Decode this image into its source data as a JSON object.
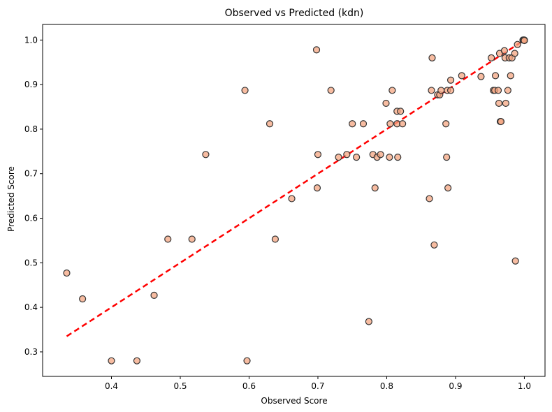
{
  "chart_data": {
    "type": "scatter",
    "title": "Observed vs Predicted (kdn)",
    "xlabel": "Observed Score",
    "ylabel": "Predicted Score",
    "xlim": [
      0.3,
      1.03
    ],
    "ylim": [
      0.245,
      1.035
    ],
    "xticks": [
      "0.4",
      "0.5",
      "0.6",
      "0.7",
      "0.8",
      "0.9",
      "1.0"
    ],
    "yticks": [
      "0.3",
      "0.4",
      "0.5",
      "0.6",
      "0.7",
      "0.8",
      "0.9",
      "1.0"
    ],
    "grid": false,
    "reference_line": {
      "from": [
        0.335,
        0.335
      ],
      "to": [
        1.0,
        1.0
      ],
      "color": "#ff0000",
      "style": "dashed"
    },
    "marker_fill": "#f4a582",
    "marker_edge": "#333333",
    "points": [
      {
        "x": 0.335,
        "y": 0.477
      },
      {
        "x": 0.358,
        "y": 0.419
      },
      {
        "x": 0.4,
        "y": 0.28
      },
      {
        "x": 0.437,
        "y": 0.28
      },
      {
        "x": 0.462,
        "y": 0.427
      },
      {
        "x": 0.482,
        "y": 0.553
      },
      {
        "x": 0.517,
        "y": 0.553
      },
      {
        "x": 0.537,
        "y": 0.743
      },
      {
        "x": 0.594,
        "y": 0.887
      },
      {
        "x": 0.597,
        "y": 0.28
      },
      {
        "x": 0.63,
        "y": 0.812
      },
      {
        "x": 0.638,
        "y": 0.553
      },
      {
        "x": 0.662,
        "y": 0.644
      },
      {
        "x": 0.698,
        "y": 0.978
      },
      {
        "x": 0.699,
        "y": 0.668
      },
      {
        "x": 0.7,
        "y": 0.743
      },
      {
        "x": 0.719,
        "y": 0.887
      },
      {
        "x": 0.73,
        "y": 0.737
      },
      {
        "x": 0.742,
        "y": 0.743
      },
      {
        "x": 0.75,
        "y": 0.812
      },
      {
        "x": 0.756,
        "y": 0.737
      },
      {
        "x": 0.766,
        "y": 0.812
      },
      {
        "x": 0.774,
        "y": 0.368
      },
      {
        "x": 0.78,
        "y": 0.743
      },
      {
        "x": 0.783,
        "y": 0.668
      },
      {
        "x": 0.786,
        "y": 0.737
      },
      {
        "x": 0.791,
        "y": 0.743
      },
      {
        "x": 0.799,
        "y": 0.858
      },
      {
        "x": 0.804,
        "y": 0.737
      },
      {
        "x": 0.805,
        "y": 0.812
      },
      {
        "x": 0.808,
        "y": 0.887
      },
      {
        "x": 0.815,
        "y": 0.812
      },
      {
        "x": 0.815,
        "y": 0.84
      },
      {
        "x": 0.816,
        "y": 0.737
      },
      {
        "x": 0.82,
        "y": 0.84
      },
      {
        "x": 0.823,
        "y": 0.812
      },
      {
        "x": 0.862,
        "y": 0.644
      },
      {
        "x": 0.865,
        "y": 0.887
      },
      {
        "x": 0.866,
        "y": 0.96
      },
      {
        "x": 0.869,
        "y": 0.54
      },
      {
        "x": 0.874,
        "y": 0.877
      },
      {
        "x": 0.877,
        "y": 0.877
      },
      {
        "x": 0.879,
        "y": 0.887
      },
      {
        "x": 0.886,
        "y": 0.812
      },
      {
        "x": 0.887,
        "y": 0.737
      },
      {
        "x": 0.888,
        "y": 0.887
      },
      {
        "x": 0.889,
        "y": 0.668
      },
      {
        "x": 0.893,
        "y": 0.887
      },
      {
        "x": 0.893,
        "y": 0.91
      },
      {
        "x": 0.909,
        "y": 0.92
      },
      {
        "x": 0.937,
        "y": 0.918
      },
      {
        "x": 0.952,
        "y": 0.96
      },
      {
        "x": 0.955,
        "y": 0.887
      },
      {
        "x": 0.957,
        "y": 0.887
      },
      {
        "x": 0.958,
        "y": 0.92
      },
      {
        "x": 0.962,
        "y": 0.887
      },
      {
        "x": 0.963,
        "y": 0.858
      },
      {
        "x": 0.964,
        "y": 0.97
      },
      {
        "x": 0.965,
        "y": 0.817
      },
      {
        "x": 0.966,
        "y": 0.817
      },
      {
        "x": 0.971,
        "y": 0.976
      },
      {
        "x": 0.972,
        "y": 0.96
      },
      {
        "x": 0.973,
        "y": 0.858
      },
      {
        "x": 0.976,
        "y": 0.887
      },
      {
        "x": 0.978,
        "y": 0.96
      },
      {
        "x": 0.98,
        "y": 0.92
      },
      {
        "x": 0.982,
        "y": 0.96
      },
      {
        "x": 0.986,
        "y": 0.97
      },
      {
        "x": 0.987,
        "y": 0.504
      },
      {
        "x": 0.99,
        "y": 0.99
      },
      {
        "x": 0.998,
        "y": 1.0
      },
      {
        "x": 1.0,
        "y": 1.0
      },
      {
        "x": 0.999,
        "y": 1.0
      },
      {
        "x": 1.0,
        "y": 0.999
      }
    ]
  }
}
